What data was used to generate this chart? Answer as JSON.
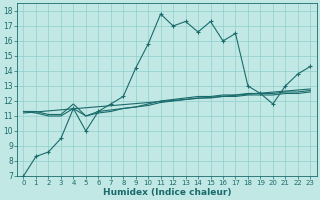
{
  "title": "",
  "xlabel": "Humidex (Indice chaleur)",
  "ylabel": "",
  "bg_color": "#c2e8e5",
  "grid_color": "#8ecfcc",
  "line_color": "#1a6b6b",
  "xlim": [
    -0.5,
    23.5
  ],
  "ylim": [
    7,
    18.5
  ],
  "yticks": [
    7,
    8,
    9,
    10,
    11,
    12,
    13,
    14,
    15,
    16,
    17,
    18
  ],
  "xticks": [
    0,
    1,
    2,
    3,
    4,
    5,
    6,
    7,
    8,
    9,
    10,
    11,
    12,
    13,
    14,
    15,
    16,
    17,
    18,
    19,
    20,
    21,
    22,
    23
  ],
  "series1_x": [
    0,
    1,
    2,
    3,
    4,
    5,
    6,
    7,
    8,
    9,
    10,
    11,
    12,
    13,
    14,
    15,
    16,
    17,
    18,
    19,
    20,
    21,
    22,
    23
  ],
  "series1_y": [
    7.0,
    8.3,
    8.6,
    9.5,
    11.5,
    10.0,
    11.3,
    11.8,
    12.3,
    14.2,
    15.8,
    17.8,
    17.0,
    17.3,
    16.6,
    17.3,
    16.0,
    16.5,
    13.0,
    12.5,
    11.8,
    13.0,
    13.8,
    14.3
  ],
  "series2_x": [
    0,
    1,
    2,
    3,
    4,
    5,
    6,
    7,
    8,
    9,
    10,
    11,
    12,
    13,
    14,
    15,
    16,
    17,
    18,
    19,
    20,
    21,
    22,
    23
  ],
  "series2_y": [
    11.3,
    11.3,
    11.1,
    11.1,
    11.8,
    11.0,
    11.3,
    11.4,
    11.5,
    11.6,
    11.7,
    11.9,
    12.0,
    12.1,
    12.2,
    12.2,
    12.3,
    12.3,
    12.4,
    12.4,
    12.4,
    12.5,
    12.5,
    12.6
  ],
  "series3_x": [
    0,
    1,
    2,
    3,
    4,
    5,
    6,
    7,
    8,
    9,
    10,
    11,
    12,
    13,
    14,
    15,
    16,
    17,
    18,
    19,
    20,
    21,
    22,
    23
  ],
  "series3_y": [
    11.3,
    11.2,
    11.0,
    11.0,
    11.5,
    11.0,
    11.2,
    11.3,
    11.5,
    11.6,
    11.8,
    12.0,
    12.1,
    12.2,
    12.3,
    12.3,
    12.4,
    12.4,
    12.5,
    12.5,
    12.5,
    12.6,
    12.6,
    12.7
  ],
  "series4_x": [
    0,
    23
  ],
  "series4_y": [
    11.2,
    12.8
  ]
}
